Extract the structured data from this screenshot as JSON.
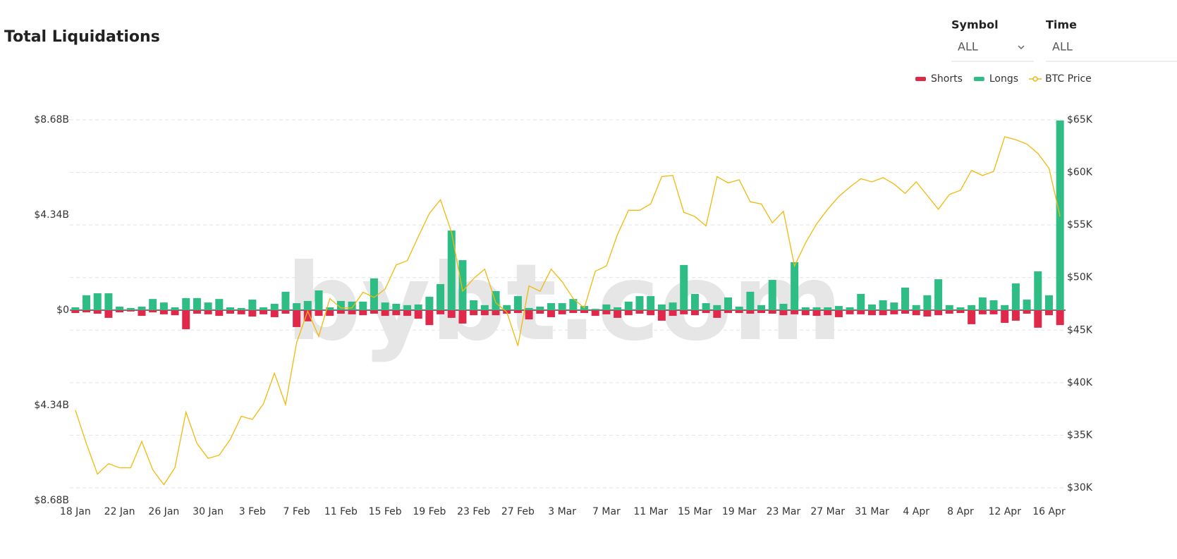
{
  "header": {
    "title": "Total Liquidations"
  },
  "controls": {
    "symbol_label": "Symbol",
    "symbol_value": "ALL",
    "time_label": "Time",
    "time_value": "ALL"
  },
  "chart_data": {
    "type": "bar",
    "watermark": "bybt.com",
    "legend": "top-right",
    "grid": true,
    "categories": [
      "18 Jan",
      null,
      null,
      null,
      "22 Jan",
      null,
      null,
      null,
      "26 Jan",
      null,
      null,
      null,
      "30 Jan",
      null,
      null,
      null,
      "3 Feb",
      null,
      null,
      null,
      "7 Feb",
      null,
      null,
      null,
      "11 Feb",
      null,
      null,
      null,
      "15 Feb",
      null,
      null,
      null,
      "19 Feb",
      null,
      null,
      null,
      "23 Feb",
      null,
      null,
      null,
      "27 Feb",
      null,
      null,
      null,
      "3 Mar",
      null,
      null,
      null,
      "7 Mar",
      null,
      null,
      null,
      "11 Mar",
      null,
      null,
      null,
      "15 Mar",
      null,
      null,
      null,
      "19 Mar",
      null,
      null,
      null,
      "23 Mar",
      null,
      null,
      null,
      "27 Mar",
      null,
      null,
      null,
      "31 Mar",
      null,
      null,
      null,
      "4 Apr",
      null,
      null,
      null,
      "8 Apr",
      null,
      null,
      null,
      "12 Apr",
      null,
      null,
      null,
      "16 Apr",
      null
    ],
    "ylim": [
      -8.68,
      8.68
    ],
    "yticks": [
      {
        "value": 8.68,
        "label": "$8.68B"
      },
      {
        "value": 4.34,
        "label": "$4.34B"
      },
      {
        "value": 0,
        "label": "$0"
      },
      {
        "value": -4.34,
        "label": "$4.34B"
      },
      {
        "value": -8.68,
        "label": "$8.68B"
      }
    ],
    "y2lim": [
      28790,
      65000
    ],
    "y2ticks": [
      {
        "value": 30000,
        "label": "$30K"
      },
      {
        "value": 35000,
        "label": "$35K"
      },
      {
        "value": 40000,
        "label": "$40K"
      },
      {
        "value": 45000,
        "label": "$45K"
      },
      {
        "value": 50000,
        "label": "$50K"
      },
      {
        "value": 55000,
        "label": "$55K"
      },
      {
        "value": 60000,
        "label": "$60K"
      },
      {
        "value": 65000,
        "label": "$65K"
      }
    ],
    "series": [
      {
        "name": "Shorts",
        "type": "bar",
        "color": "#e0294a",
        "values": [
          -0.13,
          -0.1,
          -0.16,
          -0.35,
          -0.1,
          -0.06,
          -0.26,
          -0.1,
          -0.19,
          -0.23,
          -0.87,
          -0.16,
          -0.19,
          -0.26,
          -0.16,
          -0.19,
          -0.29,
          -0.19,
          -0.32,
          -0.16,
          -0.77,
          -0.51,
          -0.26,
          -0.26,
          -0.16,
          -0.19,
          -0.23,
          -0.16,
          -0.26,
          -0.23,
          -0.26,
          -0.39,
          -0.68,
          -0.19,
          -0.35,
          -0.61,
          -0.23,
          -0.23,
          -0.23,
          -0.16,
          -0.13,
          -0.42,
          -0.16,
          -0.32,
          -0.19,
          -0.13,
          -0.13,
          -0.26,
          -0.19,
          -0.35,
          -0.23,
          -0.16,
          -0.23,
          -0.48,
          -0.26,
          -0.19,
          -0.23,
          -0.13,
          -0.35,
          -0.13,
          -0.13,
          -0.16,
          -0.13,
          -0.16,
          -0.23,
          -0.19,
          -0.23,
          -0.26,
          -0.23,
          -0.32,
          -0.19,
          -0.19,
          -0.23,
          -0.23,
          -0.19,
          -0.16,
          -0.23,
          -0.29,
          -0.23,
          -0.16,
          -0.13,
          -0.64,
          -0.19,
          -0.19,
          -0.58,
          -0.48,
          -0.16,
          -0.8,
          -0.23,
          -0.68
        ]
      },
      {
        "name": "Longs",
        "type": "bar",
        "color": "#2ebd85",
        "values": [
          0.13,
          0.68,
          0.77,
          0.77,
          0.16,
          0.1,
          0.16,
          0.51,
          0.35,
          0.13,
          0.55,
          0.55,
          0.35,
          0.51,
          0.13,
          0.1,
          0.48,
          0.13,
          0.29,
          0.84,
          0.32,
          0.42,
          0.9,
          0.13,
          0.42,
          0.39,
          0.39,
          1.45,
          0.35,
          0.29,
          0.23,
          0.26,
          0.61,
          1.19,
          3.63,
          2.28,
          0.45,
          0.23,
          0.87,
          0.23,
          0.64,
          0.1,
          0.16,
          0.32,
          0.32,
          0.51,
          0.19,
          0.06,
          0.26,
          0.13,
          0.39,
          0.64,
          0.64,
          0.26,
          0.35,
          2.06,
          0.74,
          0.32,
          0.23,
          0.58,
          0.16,
          0.84,
          0.23,
          1.38,
          0.29,
          2.19,
          0.13,
          0.13,
          0.13,
          0.19,
          0.13,
          0.74,
          0.26,
          0.45,
          0.35,
          1.03,
          0.23,
          0.68,
          1.41,
          0.23,
          0.13,
          0.23,
          0.58,
          0.45,
          0.23,
          1.22,
          0.48,
          1.77,
          0.68,
          8.65
        ]
      },
      {
        "name": "BTC Price",
        "type": "line",
        "axis": "y2",
        "color": "#f0b90b",
        "values": [
          37400,
          34200,
          31300,
          32300,
          31900,
          31900,
          34400,
          31700,
          30300,
          31900,
          37200,
          34200,
          32800,
          33100,
          34600,
          36800,
          36500,
          38000,
          40900,
          37900,
          43800,
          46800,
          44400,
          48000,
          47100,
          47100,
          48600,
          48100,
          48900,
          51200,
          51600,
          53900,
          56100,
          57400,
          54300,
          48700,
          49900,
          50800,
          47600,
          46700,
          43500,
          49200,
          48700,
          50800,
          49600,
          48000,
          47100,
          50600,
          51100,
          54100,
          56400,
          56400,
          57000,
          59600,
          59700,
          56200,
          55800,
          54900,
          59600,
          59000,
          59300,
          57200,
          57000,
          55200,
          56300,
          51100,
          53300,
          55100,
          56500,
          57700,
          58600,
          59400,
          59100,
          59500,
          58900,
          58000,
          59100,
          57800,
          56500,
          57900,
          58300,
          60200,
          59700,
          60100,
          63400,
          63100,
          62700,
          61800,
          60400,
          55800
        ]
      }
    ]
  }
}
